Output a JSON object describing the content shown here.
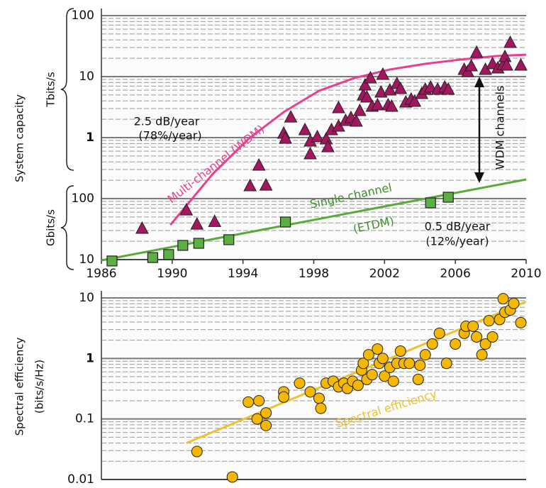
{
  "chart_data": [
    {
      "type": "scatter",
      "log_y": true,
      "grid": true,
      "minor_grid": true,
      "ylabel": "System capacity",
      "unit_labels": [
        "Tbits/s",
        "Gbits/s"
      ],
      "xlim": [
        1986,
        2010
      ],
      "xticks": [
        1986,
        1990,
        1994,
        1998,
        2002,
        2006,
        2010
      ],
      "ylim": [
        10,
        100000
      ],
      "yticks": [
        10,
        100,
        {
          "value": 1000,
          "label": "1"
        },
        {
          "value": 10000,
          "label": "10"
        },
        {
          "value": 100000,
          "label": "100"
        }
      ],
      "series": [
        {
          "marker": "triangle",
          "color": "#a3175f",
          "x": [
            1988.3,
            1990.8,
            1991.4,
            1992.4,
            1994.4,
            1994.9,
            1995.3,
            1996.3,
            1996.4,
            1996.7,
            1997.5,
            1997.8,
            1997.8,
            1998.2,
            1998.7,
            1998.8,
            1999.0,
            1999.4,
            1999.8,
            2000.1,
            1999.4,
            2000.4,
            2000.6,
            2000.8,
            2000.9,
            2001.2,
            2001.0,
            2001.3,
            2001.6,
            2001.8,
            2001.9,
            2002.2,
            2002.3,
            2002.4,
            2002.7,
            2002.9,
            2003.2,
            2003.5,
            2003.7,
            2004.1,
            2004.3,
            2004.6,
            2005.0,
            2005.4,
            2005.6,
            2006.5,
            2006.7,
            2006.9,
            2007.2,
            2007.7,
            2008.1,
            2008.4,
            2008.7,
            2008.8,
            2008.9,
            2009.1,
            2009.7
          ],
          "values": [
            32.5,
            65,
            38,
            42,
            162,
            352,
            166,
            1175,
            975,
            2170,
            1343,
            540,
            875,
            1028,
            948,
            706,
            1343,
            1535,
            1901,
            2117,
            3076,
            1850,
            2767,
            4988,
            7246,
            9484,
            4600,
            3250,
            3428,
            5546,
            10840,
            3428,
            6012,
            3250,
            7656,
            6339,
            3813,
            4246,
            3920,
            5260,
            6180,
            6700,
            6180,
            6700,
            6180,
            13060,
            12050,
            14930,
            24850,
            13060,
            16180,
            13800,
            15780,
            21180,
            15350,
            36140,
            15350
          ]
        },
        {
          "marker": "square",
          "color": "#5cb043",
          "x": [
            1986.6,
            1988.9,
            1989.8,
            1990.6,
            1991.5,
            1993.2,
            1996.4,
            2004.6,
            2005.6
          ],
          "values": [
            9.5,
            10.8,
            12.1,
            17.1,
            18.5,
            21.2,
            41.3,
            85.1,
            105.5
          ]
        }
      ],
      "curves": [
        {
          "color": "#e8408f",
          "x": [
            1989.9,
            1992.3,
            1994.3,
            1996.3,
            1998.3,
            2000.3,
            2002.3,
            2004.3,
            2006.3,
            2008.3,
            2010
          ],
          "values": [
            37,
            255,
            949,
            2625,
            5850,
            9490,
            13060,
            16180,
            19010,
            21730,
            22900
          ]
        },
        {
          "color": "#5aaa3a",
          "x": [
            1986,
            2010
          ],
          "values": [
            9.7,
            206
          ]
        }
      ],
      "annotations": [
        {
          "text": "2.5 dB/year",
          "color": "#111111"
        },
        {
          "text": "(78%/year)",
          "color": "#111111"
        },
        {
          "text": "Multi-channel (WDM)",
          "color": "#e8408f"
        },
        {
          "text": "Single channel",
          "color": "#3f8f2a"
        },
        {
          "text": "(ETDM)",
          "color": "#3f8f2a"
        },
        {
          "text": "0.5 dB/year",
          "color": "#111111"
        },
        {
          "text": "(12%/year)",
          "color": "#111111"
        },
        {
          "text": "WDM channels",
          "color": "#111111"
        }
      ]
    },
    {
      "type": "scatter",
      "log_y": true,
      "grid": true,
      "minor_grid": true,
      "ylabel": [
        "Spectral efficiency",
        "(bits/s/Hz)"
      ],
      "xlim": [
        1986,
        2010
      ],
      "ylim": [
        0.01,
        10
      ],
      "yticks": [
        0.01,
        0.1,
        1,
        10
      ],
      "series": [
        {
          "marker": "circle",
          "color": "#f5b800",
          "x": [
            1991.4,
            1993.4,
            1994.3,
            1994.9,
            1994.8,
            1995.3,
            1995.3,
            1996.3,
            1996.3,
            1997.2,
            1997.8,
            1998.3,
            1998.4,
            1998.7,
            1999.1,
            1999.4,
            1999.7,
            1999.9,
            2000.2,
            2000.5,
            2000.7,
            2000.8,
            2001.0,
            2001.1,
            2001.3,
            2001.6,
            2001.7,
            2001.9,
            2002.0,
            2002.3,
            2002.5,
            2002.7,
            2002.9,
            2003.1,
            2003.4,
            2003.9,
            2004.0,
            2004.3,
            2004.7,
            2005.1,
            2005.5,
            2006.0,
            2006.5,
            2006.6,
            2007.0,
            2007.2,
            2007.5,
            2007.7,
            2008.1,
            2007.9,
            2008.5,
            2008.7,
            2008.8,
            2009.1,
            2009.3,
            2009.7
          ],
          "values": [
            0.029,
            0.011,
            0.19,
            0.2,
            0.1,
            0.126,
            0.078,
            0.28,
            0.23,
            0.39,
            0.28,
            0.22,
            0.15,
            0.39,
            0.42,
            0.34,
            0.39,
            0.32,
            0.42,
            0.36,
            0.64,
            0.83,
            0.45,
            1.15,
            0.54,
            1.43,
            0.83,
            1.0,
            0.51,
            0.71,
            0.42,
            0.83,
            1.32,
            0.83,
            0.83,
            0.45,
            0.77,
            1.15,
            1.73,
            2.6,
            0.83,
            1.73,
            2.6,
            3.4,
            3.4,
            2.27,
            1.15,
            1.73,
            2.27,
            4.2,
            4.4,
            9.7,
            5.8,
            6.3,
            8.1,
            3.9
          ]
        }
      ],
      "curves": [
        {
          "color": "#f0c030",
          "x": [
            1990.8,
            2010
          ],
          "values": [
            0.04,
            8.7
          ]
        }
      ],
      "annotations": [
        {
          "text": "Spectral efficiency",
          "color": "#f0c030"
        }
      ]
    }
  ]
}
